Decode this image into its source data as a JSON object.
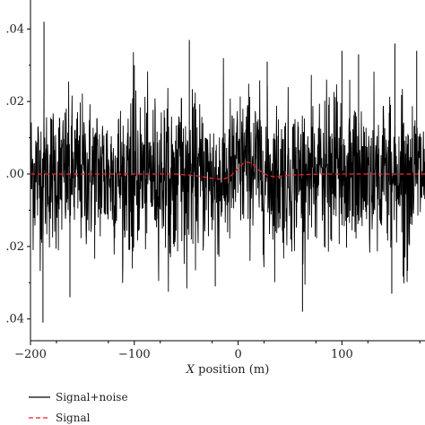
{
  "chart_data": {
    "type": "line",
    "title": "",
    "xlabel_italic": "X",
    "xlabel_rest": " position (m)",
    "ylabel": "",
    "xlim": [
      -200,
      180
    ],
    "ylim": [
      -0.046,
      0.048
    ],
    "x_ticks": [
      -200,
      -100,
      0,
      100
    ],
    "x_tick_labels": [
      "−200",
      "−100",
      "0",
      "100"
    ],
    "y_ticks": [
      0.04,
      0.02,
      0.0,
      -0.02,
      -0.04
    ],
    "y_tick_labels": [
      ".04",
      ".02",
      ".00",
      ".02",
      ".04"
    ],
    "grid": false,
    "legend_position": "bottom-left",
    "series": [
      {
        "name": "Signal+noise",
        "color": "#000000",
        "style": "solid",
        "description_points": {
          "x_range": [
            -200,
            180
          ],
          "typical_amplitude": 0.012,
          "max_peak": 0.042,
          "min_trough": -0.041
        },
        "peaks": [
          {
            "x": -187,
            "y": 0.042
          },
          {
            "x": -188,
            "y": -0.041
          },
          {
            "x": -47,
            "y": 0.037
          },
          {
            "x": -22,
            "y": -0.031
          },
          {
            "x": 62,
            "y": -0.038
          },
          {
            "x": 148,
            "y": -0.033
          },
          {
            "x": 151,
            "y": 0.036
          },
          {
            "x": -162,
            "y": -0.034
          },
          {
            "x": 100,
            "y": 0.034
          },
          {
            "x": 116,
            "y": 0.033
          },
          {
            "x": 172,
            "y": 0.034
          },
          {
            "x": 28,
            "y": 0.031
          },
          {
            "x": -100,
            "y": 0.03
          }
        ]
      },
      {
        "name": "Signal",
        "color": "#e8202a",
        "style": "dashed",
        "x": [
          -200,
          -60,
          -40,
          -25,
          -15,
          -8,
          0,
          5,
          10,
          15,
          20,
          28,
          35,
          50,
          80,
          180
        ],
        "y": [
          0.0,
          0.0,
          -0.0005,
          -0.0012,
          -0.0015,
          -0.0008,
          0.0015,
          0.003,
          0.0033,
          0.0025,
          0.001,
          -0.0003,
          -0.0008,
          -0.0003,
          0.0,
          0.0
        ]
      }
    ]
  }
}
